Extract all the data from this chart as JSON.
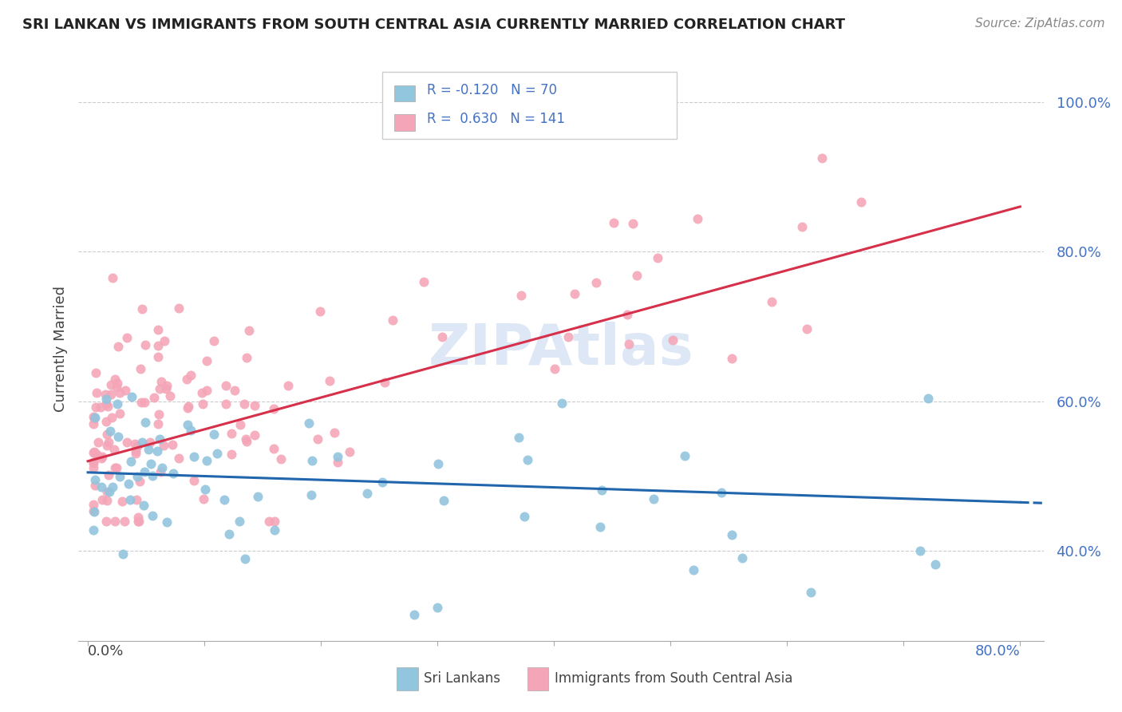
{
  "title": "SRI LANKAN VS IMMIGRANTS FROM SOUTH CENTRAL ASIA CURRENTLY MARRIED CORRELATION CHART",
  "source": "Source: ZipAtlas.com",
  "ylabel": "Currently Married",
  "ytick_labels": [
    "40.0%",
    "60.0%",
    "80.0%",
    "100.0%"
  ],
  "ytick_values": [
    0.4,
    0.6,
    0.8,
    1.0
  ],
  "xlim": [
    0.0,
    0.8
  ],
  "ylim": [
    0.28,
    1.06
  ],
  "legend_label1": "Sri Lankans",
  "legend_label2": "Immigrants from South Central Asia",
  "r1": -0.12,
  "n1": 70,
  "r2": 0.63,
  "n2": 141,
  "color1": "#92c5de",
  "color2": "#f4a6b8",
  "color1_line": "#2166ac",
  "color2_line": "#d6304a",
  "watermark_color": "#c8d8f0",
  "title_fontsize": 13,
  "source_fontsize": 11,
  "tick_fontsize": 13,
  "legend_fontsize": 12
}
